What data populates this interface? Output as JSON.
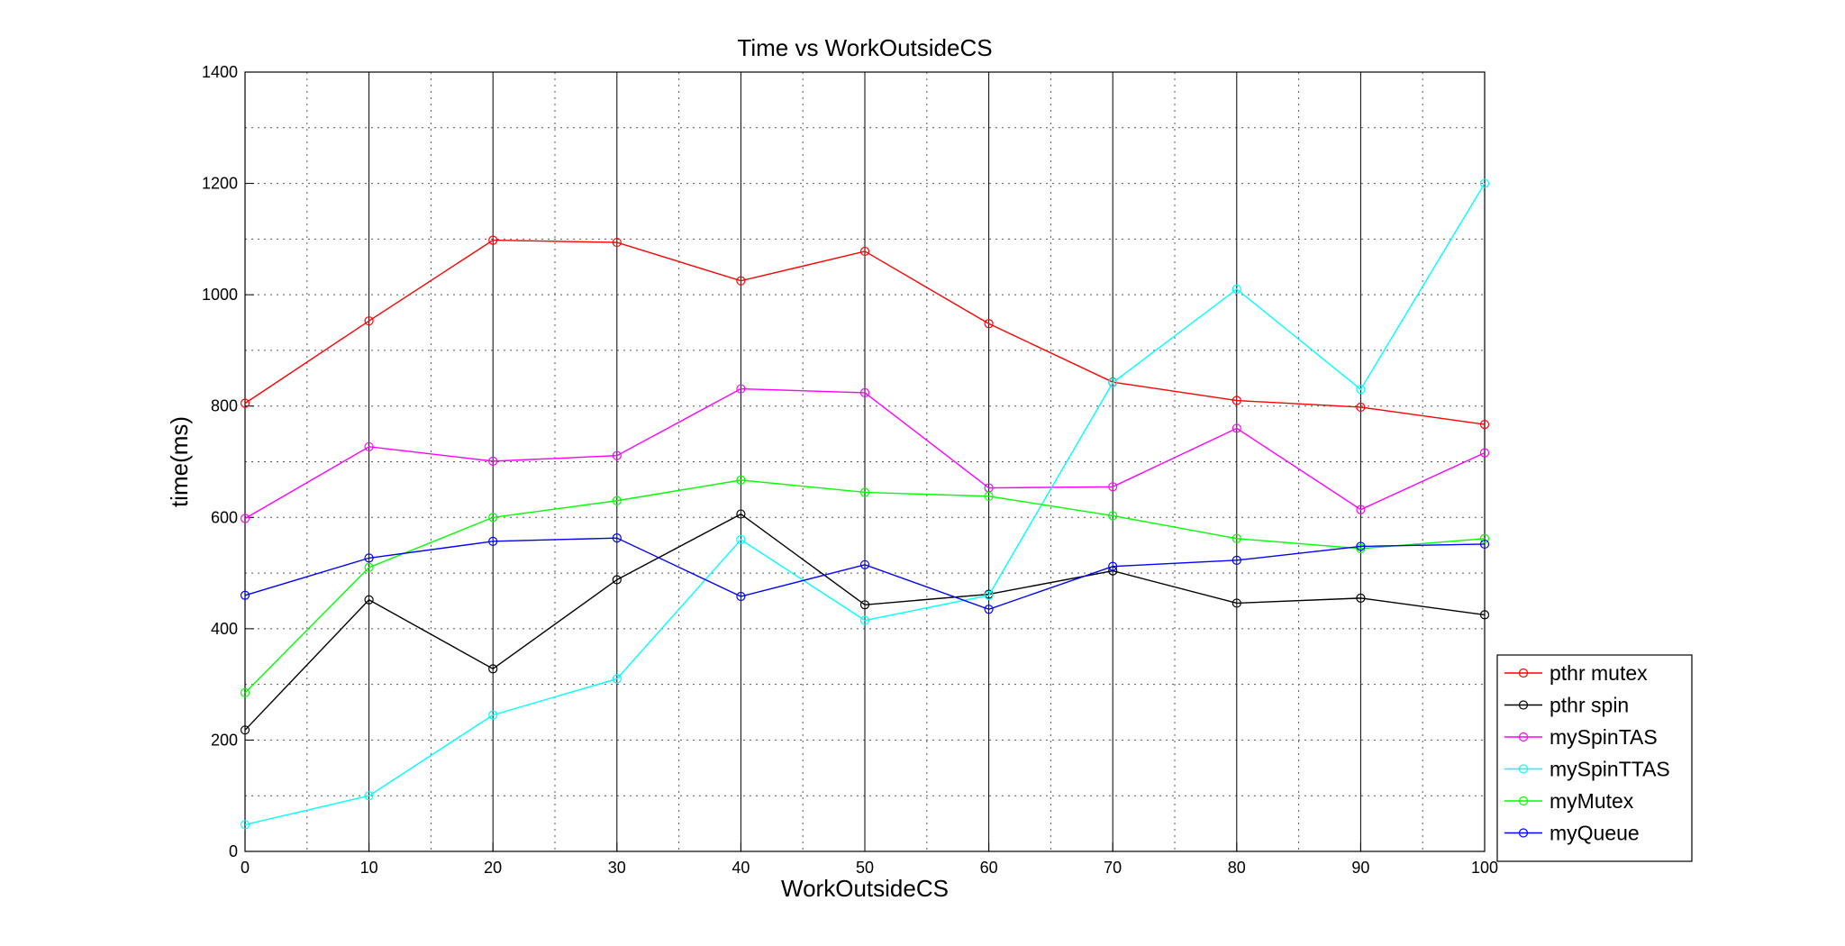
{
  "chart_data": {
    "type": "line",
    "title": "Time vs WorkOutsideCS",
    "xlabel": "WorkOutsideCS",
    "ylabel": "time(ms)",
    "xlim": [
      0,
      100
    ],
    "ylim": [
      0,
      1400
    ],
    "x_ticks": [
      "0",
      "10",
      "20",
      "30",
      "40",
      "50",
      "60",
      "70",
      "80",
      "90",
      "100"
    ],
    "y_ticks": [
      "0",
      "200",
      "400",
      "600",
      "800",
      "1000",
      "1200",
      "1400"
    ],
    "grid": "major solid vertical, minor dotted",
    "legend_position": "bottom-right",
    "x": [
      0,
      10,
      20,
      30,
      40,
      50,
      60,
      70,
      80,
      90,
      100
    ],
    "series": [
      {
        "name": "pthr mutex",
        "color": "#ff0000",
        "values": [
          805,
          953,
          1098,
          1094,
          1025,
          1078,
          948,
          843,
          810,
          798,
          767
        ]
      },
      {
        "name": "pthr spin",
        "color": "#000000",
        "values": [
          218,
          452,
          328,
          488,
          606,
          443,
          462,
          504,
          446,
          455,
          425
        ]
      },
      {
        "name": "mySpinTAS",
        "color": "#ff00ff",
        "values": [
          598,
          727,
          701,
          711,
          831,
          824,
          653,
          655,
          760,
          614,
          716
        ]
      },
      {
        "name": "mySpinTTAS",
        "color": "#00ffff",
        "values": [
          48,
          100,
          245,
          310,
          560,
          415,
          460,
          842,
          1010,
          830,
          1200
        ]
      },
      {
        "name": "myMutex",
        "color": "#00ff00",
        "values": [
          285,
          510,
          600,
          630,
          667,
          645,
          638,
          603,
          562,
          544,
          562
        ]
      },
      {
        "name": "myQueue",
        "color": "#0000ff",
        "values": [
          460,
          527,
          557,
          563,
          458,
          515,
          435,
          512,
          523,
          548,
          552
        ]
      }
    ]
  }
}
